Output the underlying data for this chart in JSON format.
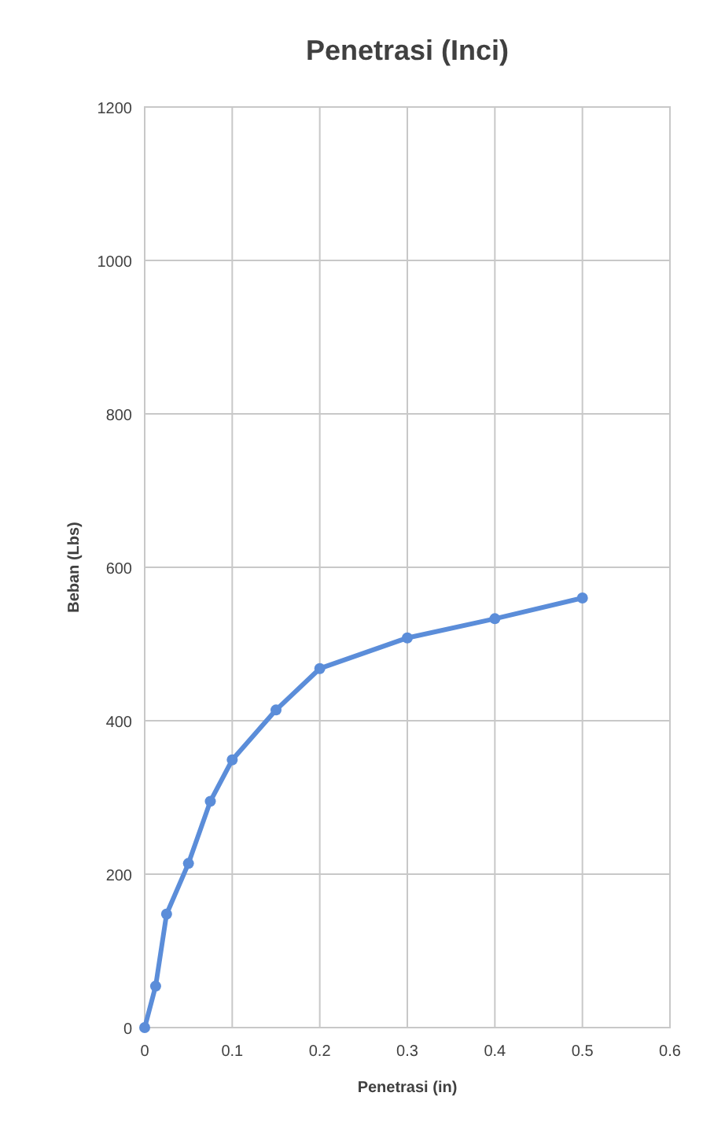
{
  "chart_data": {
    "type": "line",
    "title": "Penetrasi (Inci)",
    "xlabel": "Penetrasi (in)",
    "ylabel": "Beban (Lbs)",
    "x": [
      0,
      0.0125,
      0.025,
      0.05,
      0.075,
      0.1,
      0.15,
      0.2,
      0.3,
      0.4,
      0.5
    ],
    "series": [
      {
        "color": "#5b8dd9",
        "values": [
          0,
          54,
          148,
          214,
          295,
          349,
          414,
          468,
          508,
          533,
          560
        ]
      }
    ],
    "xlim": [
      0,
      0.6
    ],
    "xticks": [
      0,
      0.1,
      0.2,
      0.3,
      0.4,
      0.5,
      0.6
    ],
    "ylim": [
      0,
      1200
    ],
    "yticks": [
      0,
      200,
      400,
      600,
      800,
      1000,
      1200
    ],
    "grid": true,
    "marker": "circle",
    "line_style": "solid"
  }
}
